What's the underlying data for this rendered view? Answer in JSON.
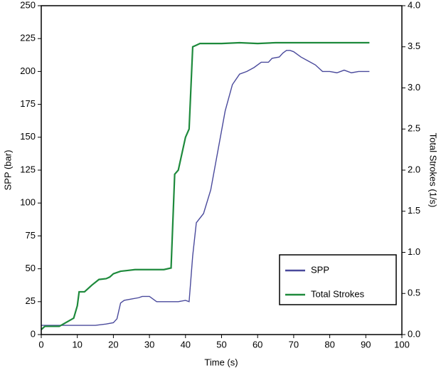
{
  "chart_data": {
    "type": "line",
    "x_label": "Time (s)",
    "y_label": "SPP (bar)",
    "y2_label": "Total Strokes (1/s)",
    "xlim": [
      0,
      100
    ],
    "xticks": [
      0,
      10,
      20,
      30,
      40,
      50,
      60,
      70,
      80,
      90,
      100
    ],
    "ylim": [
      0,
      250
    ],
    "yticks": [
      0,
      25,
      50,
      75,
      100,
      125,
      150,
      175,
      200,
      225,
      250
    ],
    "y2lim": [
      0,
      4
    ],
    "y2ticks": [
      {
        "value": 0,
        "label": "0.0"
      },
      {
        "value": 0.5,
        "label": "0.5"
      },
      {
        "value": 1,
        "label": "1.0"
      },
      {
        "value": 1.5,
        "label": "1.5"
      },
      {
        "value": 2,
        "label": "2.0"
      },
      {
        "value": 2.5,
        "label": "2.5"
      },
      {
        "value": 3,
        "label": "3.0"
      },
      {
        "value": 3.5,
        "label": "3.5"
      },
      {
        "value": 4,
        "label": "4.0"
      }
    ],
    "grid": false,
    "legend": "lower right",
    "series": [
      {
        "name": "SPP",
        "color": "#4a4a9c",
        "axis": "y",
        "x": [
          0,
          5,
          10,
          15,
          18,
          20,
          21,
          22,
          23,
          25,
          27,
          28,
          30,
          32,
          35,
          38,
          40,
          41,
          42,
          43,
          45,
          47,
          49,
          51,
          53,
          55,
          57,
          59,
          61,
          63,
          64,
          66,
          67,
          68,
          69,
          70,
          72,
          74,
          76,
          78,
          80,
          82,
          84,
          86,
          88,
          91
        ],
        "values": [
          7,
          7,
          7,
          7,
          8,
          9,
          12,
          24,
          26,
          27,
          28,
          29,
          29,
          25,
          25,
          25,
          26,
          25,
          60,
          85,
          92,
          110,
          140,
          170,
          190,
          198,
          200,
          203,
          207,
          207,
          210,
          211,
          214,
          216,
          216,
          215,
          211,
          208,
          205,
          200,
          200,
          199,
          201,
          199,
          200,
          200
        ]
      },
      {
        "name": "Total Strokes",
        "color": "#1e8a3c",
        "axis": "y2",
        "x": [
          0,
          1,
          5,
          7,
          9,
          10,
          10.5,
          12,
          14,
          16,
          18,
          19,
          20,
          22,
          24,
          26,
          30,
          34,
          36,
          37,
          38,
          39,
          40,
          41,
          42,
          43,
          44,
          50,
          55,
          60,
          65,
          91
        ],
        "values": [
          0.06,
          0.1,
          0.1,
          0.15,
          0.2,
          0.35,
          0.52,
          0.52,
          0.6,
          0.67,
          0.68,
          0.7,
          0.74,
          0.77,
          0.78,
          0.79,
          0.79,
          0.79,
          0.81,
          1.95,
          2.0,
          2.2,
          2.4,
          2.5,
          3.5,
          3.52,
          3.54,
          3.54,
          3.55,
          3.54,
          3.55,
          3.55
        ]
      }
    ]
  }
}
